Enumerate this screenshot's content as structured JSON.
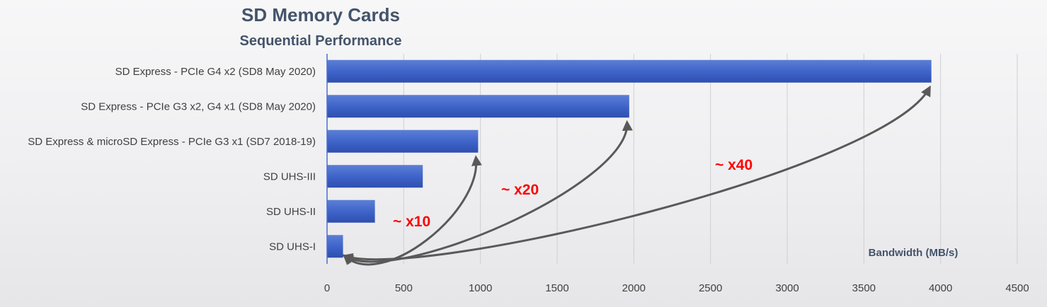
{
  "chart_data": {
    "type": "bar",
    "orientation": "horizontal",
    "title": "SD Memory Cards",
    "subtitle": "Sequential Performance",
    "xlabel": "Bandwidth (MB/s)",
    "ylabel": "",
    "categories": [
      "SD Express - PCIe G4 x2 (SD8 May 2020)",
      "SD Express - PCIe G3 x2, G4 x1 (SD8 May 2020)",
      "SD Express & microSD Express - PCIe G3 x1 (SD7 2018-19)",
      "SD UHS-III",
      "SD UHS-II",
      "SD UHS-I"
    ],
    "values": [
      3940,
      1970,
      985,
      624,
      312,
      104
    ],
    "xlim": [
      0,
      4500
    ],
    "xticks": [
      0,
      500,
      1000,
      1500,
      2000,
      2500,
      3000,
      3500,
      4000,
      4500
    ],
    "grid": true,
    "bar_color": "#3f63c9",
    "annotations": [
      {
        "text": "~ x10",
        "from": "SD UHS-I",
        "to": "SD Express & microSD Express - PCIe G3 x1 (SD7 2018-19)"
      },
      {
        "text": "~ x20",
        "from": "SD UHS-I",
        "to": "SD Express - PCIe G3 x2, G4 x1 (SD8 May 2020)"
      },
      {
        "text": "~ x40",
        "from": "SD UHS-I",
        "to": "SD Express - PCIe G4 x2 (SD8 May 2020)"
      }
    ],
    "annotation_color": "#ff0000",
    "arrow_color": "#595959"
  }
}
